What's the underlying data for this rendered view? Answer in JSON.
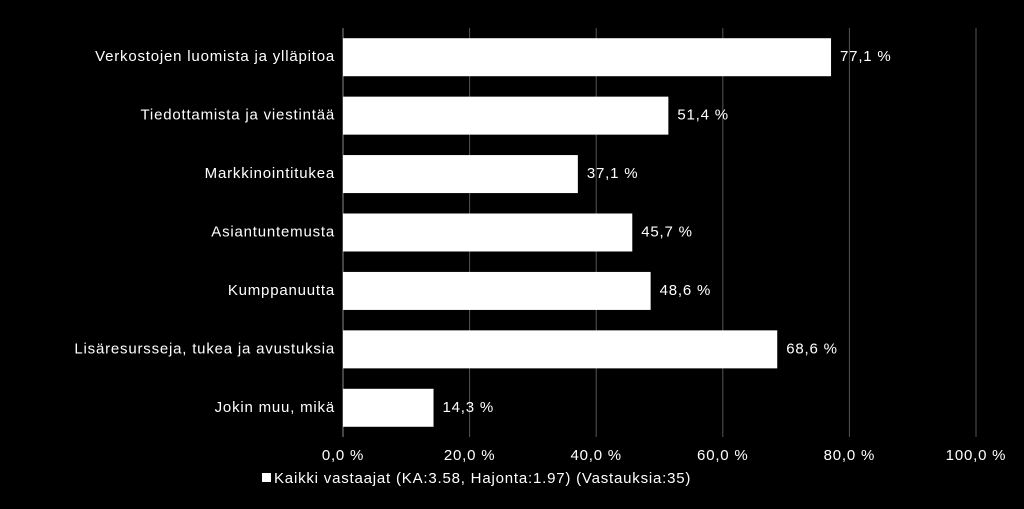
{
  "chart_data": {
    "type": "bar",
    "orientation": "horizontal",
    "categories": [
      "Verkostojen luomista ja ylläpitoa",
      "Tiedottamista ja viestintää",
      "Markkinointitukea",
      "Asiantuntemusta",
      "Kumppanuutta",
      "Lisäresursseja, tukea ja avustuksia",
      "Jokin muu, mikä"
    ],
    "series": [
      {
        "name": "Kaikki vastaajat (KA:3.58, Hajonta:1.97) (Vastauksia:35)",
        "color": "#ffffff",
        "values": [
          77.1,
          51.4,
          37.1,
          45.7,
          48.6,
          68.6,
          14.3
        ],
        "value_labels": [
          "77,1 %",
          "51,4 %",
          "37,1 %",
          "45,7 %",
          "48,6 %",
          "68,6 %",
          "14,3 %"
        ]
      }
    ],
    "xlim": [
      0,
      100
    ],
    "xticks": [
      {
        "value": 0,
        "label": "0,0 %"
      },
      {
        "value": 20,
        "label": "20,0 %"
      },
      {
        "value": 40,
        "label": "40,0 %"
      },
      {
        "value": 60,
        "label": "60,0 %"
      },
      {
        "value": 80,
        "label": "80,0 %"
      },
      {
        "value": 100,
        "label": "100,0 %"
      }
    ],
    "grid": true
  }
}
